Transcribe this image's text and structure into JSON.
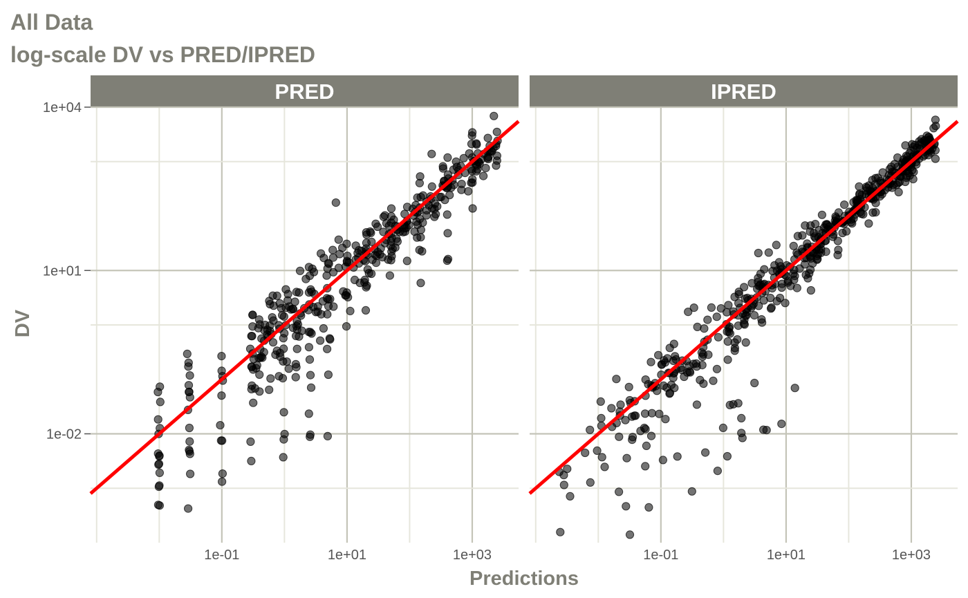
{
  "title": "All Data",
  "subtitle": "log-scale DV vs PRED/IPRED",
  "xlabel": "Predictions",
  "ylabel": "DV",
  "colors": {
    "title": "#7f7f76",
    "strip": "#7f7f76",
    "strip_text": "#ffffff",
    "grid_major": "#c4c4b8",
    "grid_minor": "#e6e6dc",
    "points": "#000000",
    "identity_line": "#ff0000"
  },
  "chart_data": [
    {
      "type": "scatter",
      "panel": "PRED",
      "x_scale": "log10",
      "y_scale": "log10",
      "xlim": [
        0.0008,
        5500
      ],
      "ylim": [
        0.0001,
        10000
      ],
      "x_ticks": [
        "1e-01",
        "1e+01",
        "1e+03"
      ],
      "y_ticks": [
        "1e-02",
        "1e+01",
        "1e+04"
      ],
      "grid": true,
      "reference_line": "identity (y = x)",
      "points_description": "Observed DV vs population predictions; points at discrete PRED values",
      "clusters": [
        {
          "x": 0.01,
          "y": [
            0.0005,
            0.001,
            0.002,
            0.004,
            0.006,
            0.01,
            0.02,
            0.03,
            0.05,
            0.08
          ]
        },
        {
          "x": 0.03,
          "y": [
            0.0005,
            0.003,
            0.005,
            0.008,
            0.02,
            0.04,
            0.06,
            0.1,
            0.2,
            0.3
          ]
        },
        {
          "x": 0.1,
          "y": [
            0.002,
            0.005,
            0.008,
            0.015,
            0.05,
            0.1,
            0.15,
            0.2
          ]
        },
        {
          "x": 0.3,
          "y": [
            0.004,
            0.008,
            0.05,
            0.1,
            0.2,
            0.3,
            0.6,
            1,
            1.5
          ]
        },
        {
          "x": 1,
          "y": [
            0.005,
            0.01,
            0.03,
            0.1,
            0.2,
            0.4,
            0.8,
            1.5,
            2.5
          ]
        },
        {
          "x": 2.5,
          "y": [
            0.01,
            0.03,
            0.1,
            0.3,
            0.8,
            1.5,
            3,
            6,
            8
          ]
        },
        {
          "x": 5,
          "y": [
            0.01,
            0.1,
            0.5,
            1,
            2,
            4,
            8,
            15
          ]
        },
        {
          "x": 10,
          "y": [
            0.8,
            3,
            6,
            10,
            15,
            20,
            25
          ]
        },
        {
          "x": 20,
          "y": [
            3,
            5,
            10,
            15,
            25,
            35,
            45
          ]
        },
        {
          "x": 50,
          "y": [
            6,
            15,
            30,
            50,
            80,
            100
          ]
        },
        {
          "x": 150,
          "y": [
            8,
            25,
            60,
            120,
            200,
            350
          ]
        },
        {
          "x": 400,
          "y": [
            20,
            60,
            150,
            350,
            600,
            900
          ]
        },
        {
          "x": 1000,
          "y": [
            200,
            600,
            1200,
            2000,
            3500
          ]
        },
        {
          "x": 2500,
          "y": [
            800,
            1500,
            3000,
            5000
          ]
        }
      ]
    },
    {
      "type": "scatter",
      "panel": "IPRED",
      "x_scale": "log10",
      "y_scale": "log10",
      "xlim": [
        0.0008,
        5500
      ],
      "ylim": [
        0.0001,
        10000
      ],
      "x_ticks": [
        "1e-01",
        "1e+01",
        "1e+03"
      ],
      "y_ticks": [
        "1e-02",
        "1e+01",
        "1e+04"
      ],
      "grid": true,
      "reference_line": "identity (y = x)",
      "points_description": "Observed DV vs individual predictions; continuous spread tighter around identity"
    }
  ],
  "panels": [
    "PRED",
    "IPRED"
  ]
}
